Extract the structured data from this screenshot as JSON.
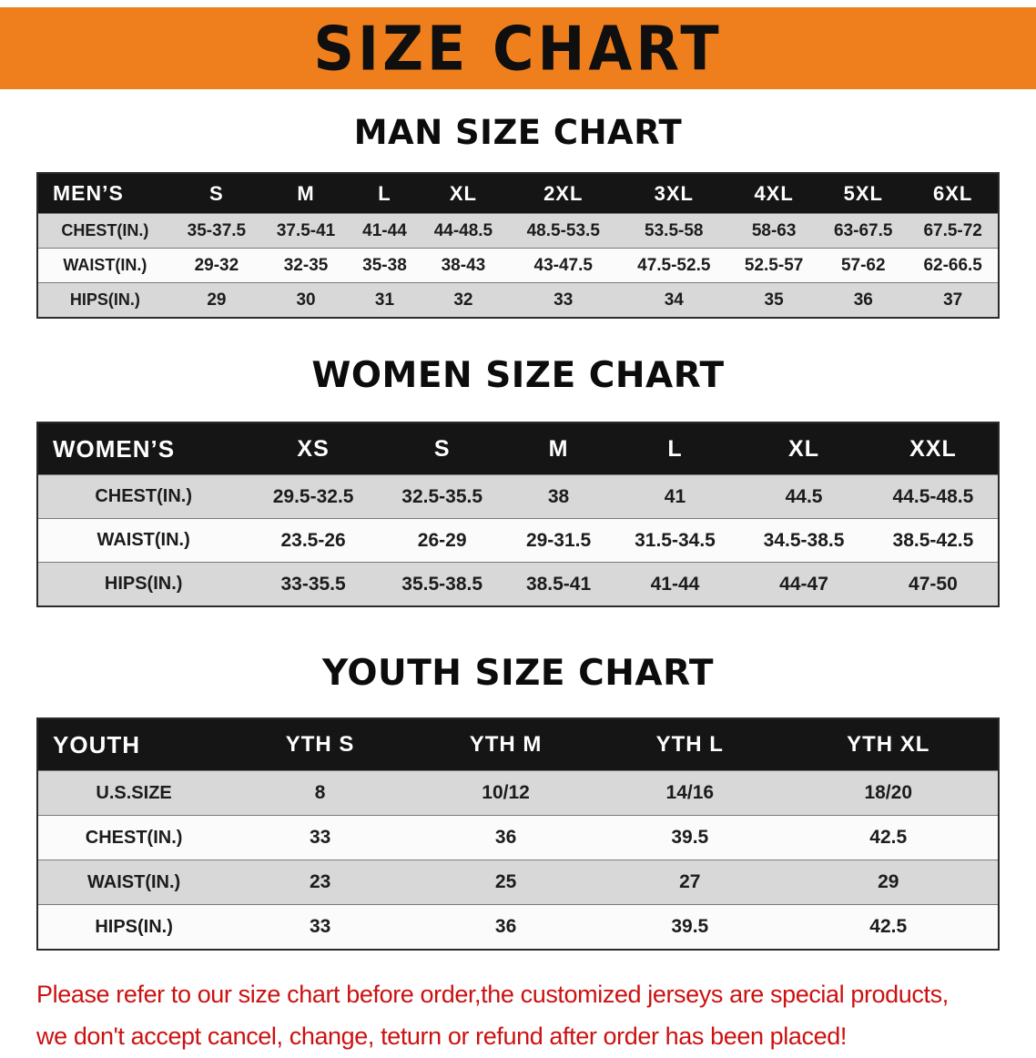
{
  "banner": {
    "title": "SIZE CHART",
    "bg_color": "#EF7F1C"
  },
  "sections": [
    {
      "title": "MAN SIZE CHART",
      "table": {
        "header": [
          "MEN’S",
          "S",
          "M",
          "L",
          "XL",
          "2XL",
          "3XL",
          "4XL",
          "5XL",
          "6XL"
        ],
        "rows": [
          [
            "CHEST(IN.)",
            "35-37.5",
            "37.5-41",
            "41-44",
            "44-48.5",
            "48.5-53.5",
            "53.5-58",
            "58-63",
            "63-67.5",
            "67.5-72"
          ],
          [
            "WAIST(IN.)",
            "29-32",
            "32-35",
            "35-38",
            "38-43",
            "43-47.5",
            "47.5-52.5",
            "52.5-57",
            "57-62",
            "62-66.5"
          ],
          [
            "HIPS(IN.)",
            "29",
            "30",
            "31",
            "32",
            "33",
            "34",
            "35",
            "36",
            "37"
          ]
        ]
      }
    },
    {
      "title": "WOMEN SIZE CHART",
      "table": {
        "header": [
          "WOMEN’S",
          "XS",
          "S",
          "M",
          "L",
          "XL",
          "XXL"
        ],
        "rows": [
          [
            "CHEST(IN.)",
            "29.5-32.5",
            "32.5-35.5",
            "38",
            "41",
            "44.5",
            "44.5-48.5"
          ],
          [
            "WAIST(IN.)",
            "23.5-26",
            "26-29",
            "29-31.5",
            "31.5-34.5",
            "34.5-38.5",
            "38.5-42.5"
          ],
          [
            "HIPS(IN.)",
            "33-35.5",
            "35.5-38.5",
            "38.5-41",
            "41-44",
            "44-47",
            "47-50"
          ]
        ]
      }
    },
    {
      "title": "YOUTH SIZE CHART",
      "table": {
        "header": [
          "YOUTH",
          "YTH S",
          "YTH M",
          "YTH L",
          "YTH XL"
        ],
        "rows": [
          [
            "U.S.SIZE",
            "8",
            "10/12",
            "14/16",
            "18/20"
          ],
          [
            "CHEST(IN.)",
            "33",
            "36",
            "39.5",
            "42.5"
          ],
          [
            "WAIST(IN.)",
            "23",
            "25",
            "27",
            "29"
          ],
          [
            "HIPS(IN.)",
            "33",
            "36",
            "39.5",
            "42.5"
          ]
        ]
      }
    }
  ],
  "footer": {
    "text_color": "#CC1111",
    "lines": [
      "Please refer to our size chart before order,the customized jerseys are special products,",
      "we don't accept cancel, change, teturn or refund after order has been placed!"
    ]
  }
}
